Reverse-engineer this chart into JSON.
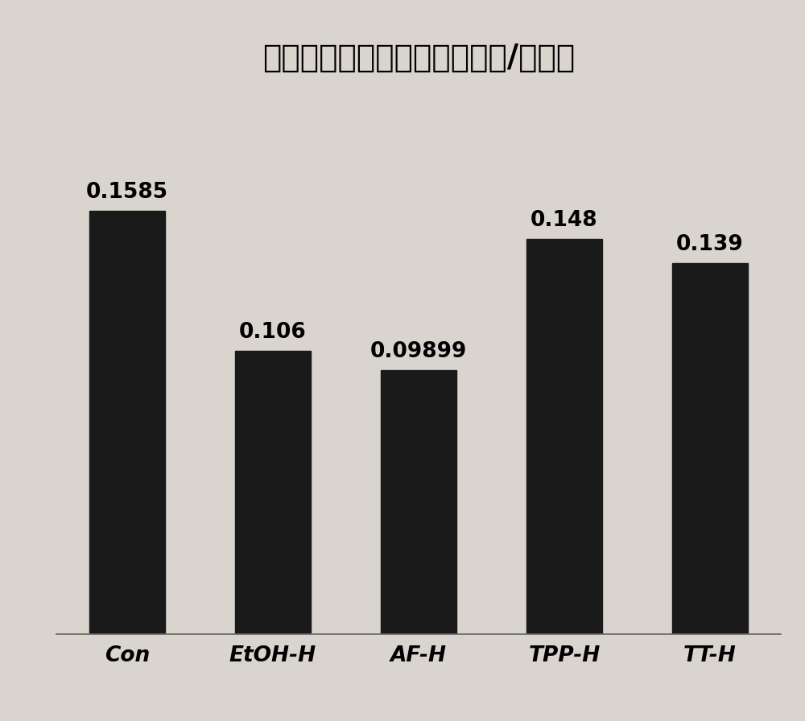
{
  "title": "高剂量药物作用后血栓（干重/始重）",
  "categories": [
    "Con",
    "EtOH-H",
    "AF-H",
    "TPP-H",
    "TT-H"
  ],
  "values": [
    0.1585,
    0.106,
    0.09899,
    0.148,
    0.139
  ],
  "value_labels": [
    "0.1585",
    "0.106",
    "0.09899",
    "0.148",
    "0.139"
  ],
  "bar_color": "#1a1a1a",
  "background_color": "#d9d5ce",
  "title_fontsize": 28,
  "label_fontsize": 19,
  "tick_fontsize": 19,
  "ylim": [
    0,
    0.205
  ],
  "bar_width": 0.52
}
